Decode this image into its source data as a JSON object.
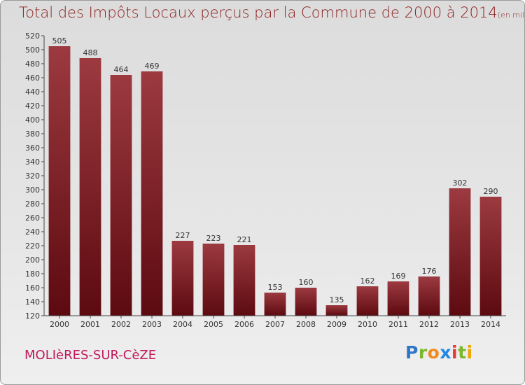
{
  "title": "Total des Impôts Locaux perçus par la Commune de 2000 à 2014",
  "title_unit": "(en milliers d'€)",
  "commune": "MOLIèRES-SUR-CèZE",
  "logo": {
    "letters": [
      "P",
      "r",
      "o",
      "x",
      "i",
      "t",
      "i"
    ],
    "colors": [
      "#2e77c8",
      "#7bb82c",
      "#f08a1c",
      "#1e88e5",
      "#e53935",
      "#7bb82c",
      "#f0a500"
    ]
  },
  "colors": {
    "bar_top": "#9c3a40",
    "bar_bottom": "#5c0a10",
    "title": "#8b1e1e"
  },
  "chart_data": {
    "type": "bar",
    "title": "Total des Impôts Locaux perçus par la Commune de 2000 à 2014",
    "ylabel": "en milliers d'€",
    "categories": [
      "2000",
      "2001",
      "2002",
      "2003",
      "2004",
      "2005",
      "2006",
      "2007",
      "2008",
      "2009",
      "2010",
      "2011",
      "2012",
      "2013",
      "2014"
    ],
    "values": [
      505,
      488,
      464,
      469,
      227,
      223,
      221,
      153,
      160,
      135,
      162,
      169,
      176,
      302,
      290
    ],
    "ylim": [
      120,
      520
    ],
    "ytick_step": 20,
    "grid": false
  }
}
